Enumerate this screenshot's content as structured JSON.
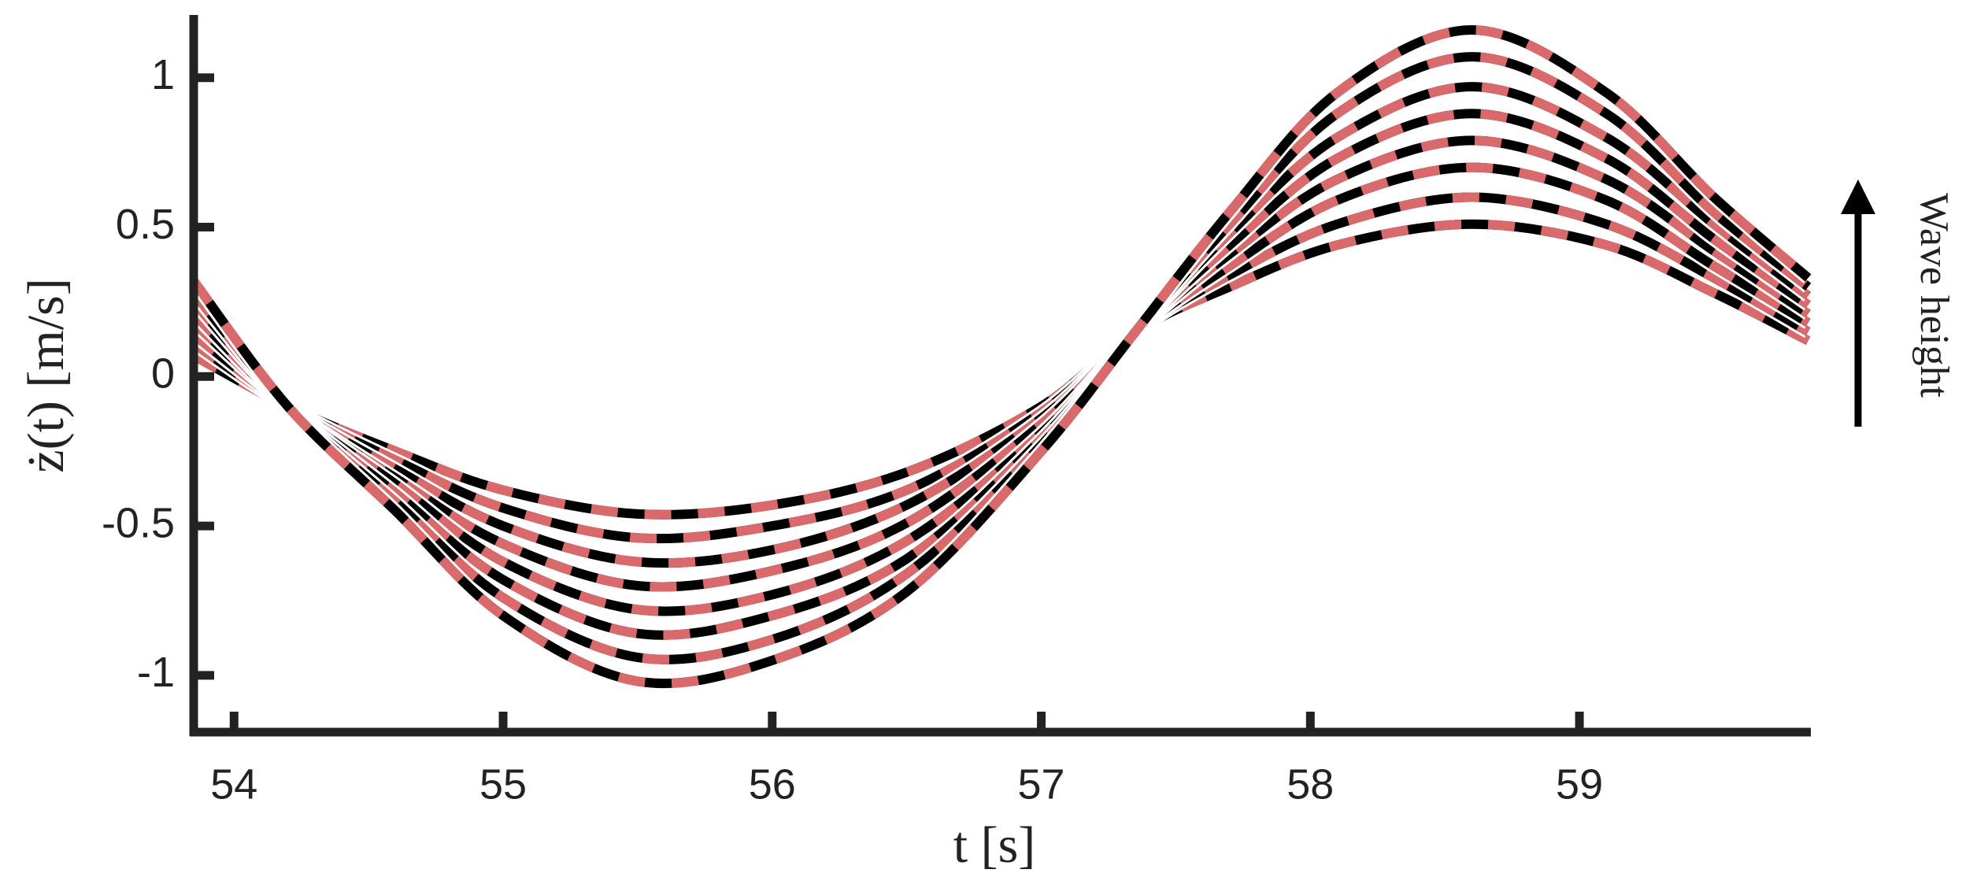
{
  "chart_data": {
    "type": "line",
    "xlabel": "t [s]",
    "ylabel": "ż(t) [m/s]",
    "annotation": "Wave height",
    "x": [
      53.85,
      54.2,
      54.6,
      55,
      55.5,
      56,
      56.5,
      57,
      57.35,
      57.7,
      58.1,
      58.6,
      59.1,
      59.5,
      59.85
    ],
    "xlim": [
      53.85,
      59.86
    ],
    "xticks": [
      54,
      55,
      56,
      57,
      58,
      59
    ],
    "ylim": [
      -1.19,
      1.21
    ],
    "yticks": [
      -1,
      -0.5,
      0,
      0.5,
      1
    ],
    "grid": false,
    "line_color": "#000000",
    "dash_color": "#d9696a",
    "series": [
      {
        "values": [
          0.07,
          -0.1,
          -0.25,
          -0.38,
          -0.46,
          -0.43,
          -0.32,
          -0.1,
          0.15,
          0.3,
          0.44,
          0.51,
          0.44,
          0.28,
          0.12
        ]
      },
      {
        "values": [
          0.11,
          -0.1,
          -0.28,
          -0.44,
          -0.54,
          -0.5,
          -0.38,
          -0.12,
          0.15,
          0.34,
          0.51,
          0.6,
          0.51,
          0.33,
          0.15
        ]
      },
      {
        "values": [
          0.14,
          -0.1,
          -0.31,
          -0.5,
          -0.62,
          -0.58,
          -0.43,
          -0.14,
          0.15,
          0.37,
          0.59,
          0.7,
          0.59,
          0.37,
          0.18
        ]
      },
      {
        "values": [
          0.18,
          -0.1,
          -0.34,
          -0.56,
          -0.7,
          -0.65,
          -0.49,
          -0.16,
          0.15,
          0.41,
          0.66,
          0.79,
          0.66,
          0.42,
          0.21
        ]
      },
      {
        "values": [
          0.21,
          -0.1,
          -0.36,
          -0.62,
          -0.78,
          -0.73,
          -0.55,
          -0.19,
          0.15,
          0.44,
          0.73,
          0.88,
          0.73,
          0.46,
          0.24
        ]
      },
      {
        "values": [
          0.25,
          -0.1,
          -0.39,
          -0.68,
          -0.86,
          -0.8,
          -0.61,
          -0.21,
          0.15,
          0.48,
          0.8,
          0.97,
          0.8,
          0.51,
          0.27
        ]
      },
      {
        "values": [
          0.28,
          -0.1,
          -0.42,
          -0.74,
          -0.94,
          -0.88,
          -0.66,
          -0.23,
          0.15,
          0.51,
          0.88,
          1.07,
          0.88,
          0.55,
          0.3
        ]
      },
      {
        "values": [
          0.32,
          -0.1,
          -0.45,
          -0.8,
          -1.02,
          -0.95,
          -0.72,
          -0.25,
          0.15,
          0.55,
          0.95,
          1.16,
          0.95,
          0.6,
          0.33
        ]
      }
    ]
  }
}
